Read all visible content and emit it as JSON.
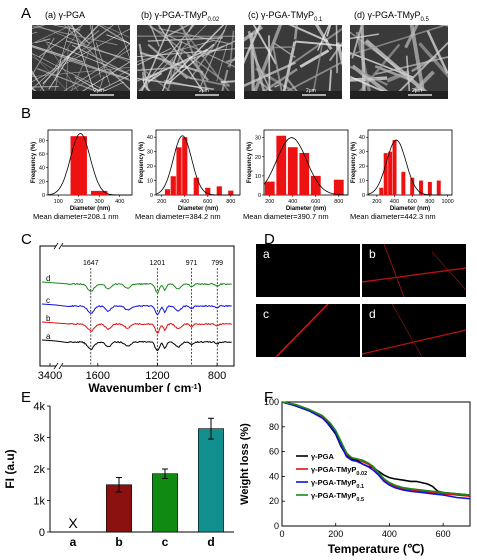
{
  "panels": {
    "A": "A",
    "B": "B",
    "C": "C",
    "D": "D",
    "E": "E",
    "F": "F"
  },
  "sem": {
    "titles": [
      {
        "main": "(a) γ-PGA",
        "sub": ""
      },
      {
        "main": "(b) γ-PGA-TMyP",
        "sub": "0.02"
      },
      {
        "main": "(c) γ-PGA-TMyP",
        "sub": "0.1"
      },
      {
        "main": "(d) γ-PGA-TMyP",
        "sub": "0.5"
      }
    ],
    "scalebar": "2μm"
  },
  "histograms": [
    {
      "xlabel": "Diameter (nm)",
      "ylabel": "Frequency (%)",
      "xticks": [
        100,
        200,
        300,
        400
      ],
      "xlim": [
        50,
        460
      ],
      "yticks": [
        0,
        20,
        40,
        60,
        80
      ],
      "ylim": [
        0,
        95
      ],
      "bars": [
        {
          "x": 200,
          "v": 86
        },
        {
          "x": 300,
          "v": 6
        }
      ],
      "bar_width": 80,
      "fit": {
        "mu": 208,
        "sigma": 48,
        "peak": 90
      },
      "mean": "Mean diameter=208.1 nm"
    },
    {
      "xlabel": "Diameter (nm)",
      "ylabel": "Frequency (%)",
      "xticks": [
        200,
        400,
        600,
        800
      ],
      "xlim": [
        150,
        880
      ],
      "yticks": [
        0,
        10,
        20,
        30,
        40
      ],
      "ylim": [
        0,
        45
      ],
      "bars": [
        {
          "x": 250,
          "v": 4
        },
        {
          "x": 300,
          "v": 13
        },
        {
          "x": 350,
          "v": 33
        },
        {
          "x": 400,
          "v": 40
        },
        {
          "x": 500,
          "v": 12
        },
        {
          "x": 600,
          "v": 5
        },
        {
          "x": 700,
          "v": 6
        },
        {
          "x": 800,
          "v": 3
        }
      ],
      "bar_width": 45,
      "fit": {
        "mu": 380,
        "sigma": 80,
        "peak": 41
      },
      "mean": "Mean diameter=384.2 nm"
    },
    {
      "xlabel": "Diameter (nm)",
      "ylabel": "Frequency (%)",
      "xticks": [
        200,
        400,
        600,
        800
      ],
      "xlim": [
        150,
        880
      ],
      "yticks": [
        0,
        10,
        20,
        30
      ],
      "ylim": [
        0,
        34
      ],
      "bars": [
        {
          "x": 200,
          "v": 7
        },
        {
          "x": 300,
          "v": 31
        },
        {
          "x": 400,
          "v": 25
        },
        {
          "x": 500,
          "v": 22
        },
        {
          "x": 600,
          "v": 10
        },
        {
          "x": 800,
          "v": 8
        }
      ],
      "bar_width": 85,
      "fit": {
        "mu": 390,
        "sigma": 130,
        "peak": 30
      },
      "mean": "Mean diameter=390.7 nm"
    },
    {
      "xlabel": "Diameter (nm)",
      "ylabel": "Frequency (%)",
      "xticks": [
        200,
        400,
        600,
        800,
        1000
      ],
      "xlim": [
        100,
        1050
      ],
      "yticks": [
        0,
        10,
        20,
        30,
        40
      ],
      "ylim": [
        0,
        45
      ],
      "bars": [
        {
          "x": 250,
          "v": 5
        },
        {
          "x": 300,
          "v": 29
        },
        {
          "x": 350,
          "v": 30
        },
        {
          "x": 400,
          "v": 38
        },
        {
          "x": 500,
          "v": 16
        },
        {
          "x": 600,
          "v": 12
        },
        {
          "x": 700,
          "v": 10
        },
        {
          "x": 800,
          "v": 9
        },
        {
          "x": 900,
          "v": 10
        }
      ],
      "bar_width": 45,
      "fit": {
        "mu": 420,
        "sigma": 110,
        "peak": 38
      },
      "mean": "Mean diameter=442.3 nm"
    }
  ],
  "ftir": {
    "xlabel": "Wavenumber ( cm",
    "xlabel_sup": "-1",
    "xlabel_end": ")",
    "xticks": [
      3400,
      1600,
      1200,
      800
    ],
    "peaks": [
      "1647",
      "1201",
      "971",
      "799"
    ],
    "curves": [
      {
        "name": "d",
        "color": "#1a8a1a"
      },
      {
        "name": "c",
        "color": "#1010e0"
      },
      {
        "name": "b",
        "color": "#e01010"
      },
      {
        "name": "a",
        "color": "#000000"
      }
    ]
  },
  "fluorescence": {
    "labels": [
      "a",
      "b",
      "c",
      "d"
    ]
  },
  "chart_data": [
    {
      "type": "bar",
      "title": "",
      "ylabel": "FI (a.u)",
      "xlabel": "",
      "categories": [
        "a",
        "b",
        "c",
        "d"
      ],
      "values": [
        0,
        1500,
        1850,
        3280
      ],
      "errors": [
        0,
        230,
        150,
        330
      ],
      "colors": [
        "#000000",
        "#8b1010",
        "#118a11",
        "#118e8e"
      ],
      "yticks": [
        "0",
        "1k",
        "2k",
        "3k",
        "4k"
      ],
      "ylim": [
        0,
        4000
      ],
      "absent_marker": "X"
    },
    {
      "type": "line",
      "title": "",
      "xlabel": "Temperature (℃)",
      "ylabel": "Weight loss (%)",
      "xlim": [
        0,
        700
      ],
      "ylim": [
        0,
        100
      ],
      "xticks": [
        0,
        200,
        400,
        600
      ],
      "yticks": [
        0,
        20,
        40,
        60,
        80,
        100
      ],
      "series": [
        {
          "name": "γ-PGA",
          "sub": "",
          "color": "#000000",
          "x": [
            0,
            50,
            100,
            150,
            180,
            200,
            220,
            240,
            260,
            280,
            300,
            320,
            340,
            360,
            380,
            400,
            420,
            450,
            480,
            500,
            520,
            540,
            560,
            580,
            600,
            650,
            700
          ],
          "y": [
            100,
            97,
            93,
            88,
            80,
            74,
            64,
            57,
            54,
            53,
            50,
            48,
            47,
            44,
            41,
            39,
            38,
            37,
            36,
            36,
            35,
            34,
            32,
            28,
            27,
            26,
            25
          ]
        },
        {
          "name": "γ-PGA-TMyP",
          "sub": "0.02",
          "color": "#e01010",
          "x": [
            0,
            50,
            100,
            150,
            180,
            200,
            220,
            240,
            260,
            280,
            300,
            320,
            340,
            360,
            380,
            400,
            420,
            450,
            480,
            520,
            560,
            600,
            650,
            700
          ],
          "y": [
            100,
            98,
            94,
            88,
            82,
            76,
            67,
            58,
            55,
            54,
            52,
            50,
            47,
            42,
            37,
            34,
            32,
            30,
            29,
            28,
            27,
            26,
            25,
            24
          ]
        },
        {
          "name": "γ-PGA-TMyP",
          "sub": "0.1",
          "color": "#1010e0",
          "x": [
            0,
            50,
            100,
            150,
            180,
            200,
            220,
            240,
            260,
            280,
            300,
            320,
            340,
            360,
            380,
            400,
            420,
            450,
            480,
            520,
            560,
            600,
            650,
            700
          ],
          "y": [
            100,
            97,
            93,
            87,
            81,
            75,
            65,
            56,
            53,
            52,
            50,
            48,
            45,
            41,
            36,
            33,
            31,
            29,
            28,
            27,
            26,
            25,
            23,
            22
          ]
        },
        {
          "name": "γ-PGA-TMyP",
          "sub": "0.5",
          "color": "#1a8a1a",
          "x": [
            0,
            50,
            100,
            150,
            180,
            200,
            220,
            240,
            260,
            280,
            300,
            320,
            340,
            360,
            380,
            400,
            420,
            450,
            480,
            520,
            560,
            600,
            650,
            700
          ],
          "y": [
            100,
            98,
            94,
            89,
            83,
            77,
            68,
            59,
            55,
            54,
            53,
            51,
            48,
            43,
            38,
            35,
            33,
            31,
            30,
            29,
            28,
            27,
            26,
            25
          ]
        }
      ]
    }
  ]
}
